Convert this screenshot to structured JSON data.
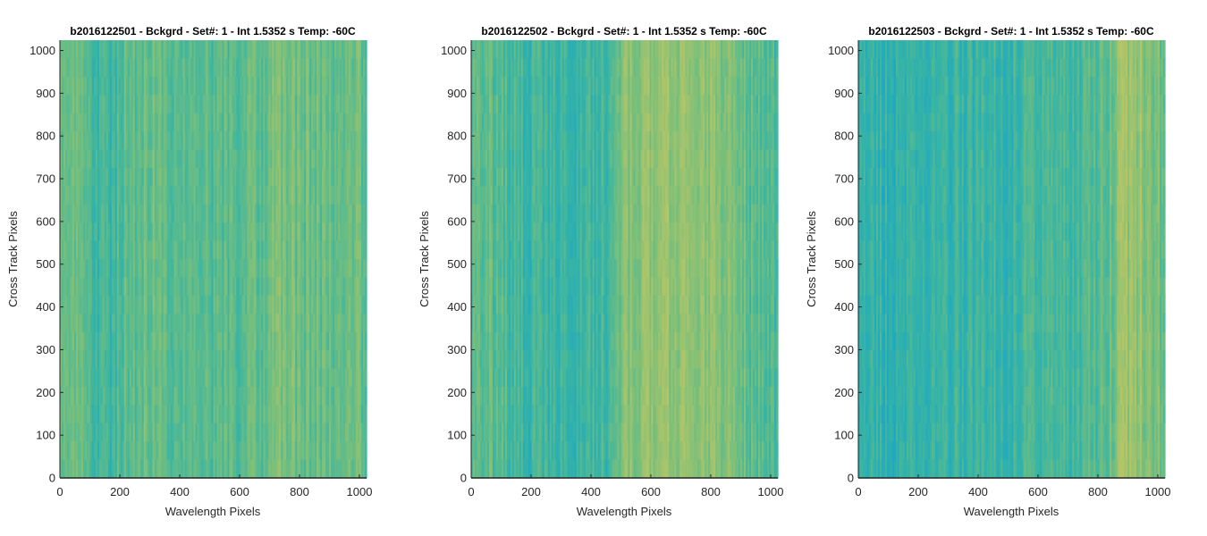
{
  "chart_data": [
    {
      "type": "heatmap",
      "title": "b2016122501 - Bckgrd - Set#: 1 - Int 1.5352 s Temp: -60C",
      "xlabel": "Wavelength Pixels",
      "ylabel": "Cross Track Pixels",
      "xlim": [
        0,
        1024
      ],
      "ylim": [
        0,
        1024
      ],
      "xticks": [
        "0",
        "200",
        "400",
        "600",
        "800",
        "1000"
      ],
      "yticks": [
        "0",
        "100",
        "200",
        "300",
        "400",
        "500",
        "600",
        "700",
        "800",
        "900",
        "1000"
      ],
      "column_profile": {
        "x": [
          0,
          100,
          150,
          200,
          260,
          300,
          400,
          500,
          600,
          680,
          720,
          760,
          800,
          900,
          1024
        ],
        "value": [
          0.58,
          0.42,
          0.35,
          0.45,
          0.58,
          0.6,
          0.5,
          0.48,
          0.5,
          0.55,
          0.62,
          0.64,
          0.6,
          0.55,
          0.6
        ]
      },
      "colors": [
        "#1aa6c6",
        "#3ab5a3",
        "#79bf7b",
        "#b6c566"
      ]
    },
    {
      "type": "heatmap",
      "title": "b2016122502 - Bckgrd - Set#: 1 - Int 1.5352 s Temp: -60C",
      "xlabel": "Wavelength Pixels",
      "ylabel": "Cross Track Pixels",
      "xlim": [
        0,
        1024
      ],
      "ylim": [
        0,
        1024
      ],
      "xticks": [
        "0",
        "200",
        "400",
        "600",
        "800",
        "1000"
      ],
      "yticks": [
        "0",
        "100",
        "200",
        "300",
        "400",
        "500",
        "600",
        "700",
        "800",
        "900",
        "1000"
      ],
      "column_profile": {
        "x": [
          0,
          60,
          150,
          250,
          350,
          450,
          490,
          530,
          600,
          700,
          800,
          900,
          960,
          1024
        ],
        "value": [
          0.6,
          0.5,
          0.38,
          0.32,
          0.3,
          0.38,
          0.62,
          0.75,
          0.8,
          0.82,
          0.76,
          0.6,
          0.48,
          0.42
        ]
      },
      "colors": [
        "#1aa6c6",
        "#3ab5a3",
        "#79bf7b",
        "#b6c566"
      ]
    },
    {
      "type": "heatmap",
      "title": "b2016122503 - Bckgrd - Set#: 1 - Int 1.5352 s Temp: -60C",
      "xlabel": "Wavelength Pixels",
      "ylabel": "Cross Track Pixels",
      "xlim": [
        0,
        1024
      ],
      "ylim": [
        0,
        1024
      ],
      "xticks": [
        "0",
        "200",
        "400",
        "600",
        "800",
        "1000"
      ],
      "yticks": [
        "0",
        "100",
        "200",
        "300",
        "400",
        "500",
        "600",
        "700",
        "800",
        "900",
        "1000"
      ],
      "column_profile": {
        "x": [
          0,
          100,
          250,
          400,
          500,
          600,
          700,
          800,
          850,
          880,
          930,
          980,
          1024
        ],
        "value": [
          0.22,
          0.25,
          0.3,
          0.32,
          0.35,
          0.38,
          0.4,
          0.45,
          0.62,
          0.8,
          0.82,
          0.7,
          0.6
        ]
      },
      "colors": [
        "#1aa6c6",
        "#3ab5a3",
        "#79bf7b",
        "#b6c566"
      ]
    }
  ]
}
